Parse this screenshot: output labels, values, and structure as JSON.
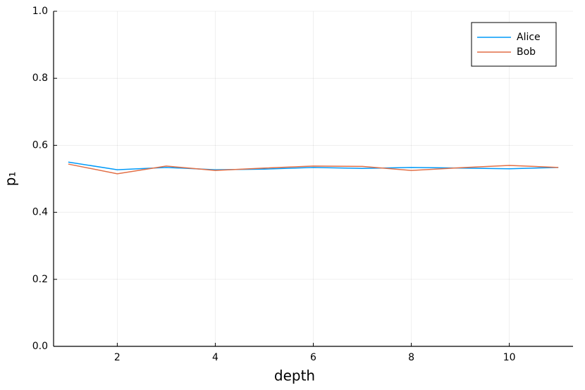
{
  "chart_data": {
    "type": "line",
    "xlabel": "depth",
    "ylabel": "p₁",
    "x": [
      1,
      2,
      3,
      4,
      5,
      6,
      7,
      8,
      9,
      10,
      11
    ],
    "series": [
      {
        "name": "Alice",
        "color": "#009af9",
        "values": [
          0.55,
          0.527,
          0.534,
          0.527,
          0.529,
          0.534,
          0.531,
          0.534,
          0.532,
          0.53,
          0.534
        ]
      },
      {
        "name": "Bob",
        "color": "#e26f46",
        "values": [
          0.544,
          0.515,
          0.538,
          0.525,
          0.532,
          0.538,
          0.537,
          0.525,
          0.533,
          0.54,
          0.534
        ]
      }
    ],
    "xlim": [
      0.7,
      11.3
    ],
    "xticks": [
      2,
      4,
      6,
      8,
      10
    ],
    "ylim": [
      0,
      1
    ],
    "yticks": [
      {
        "value": 0,
        "label": "0.0"
      },
      0.2,
      0.4,
      0.6,
      0.8,
      {
        "value": 1,
        "label": "1.0"
      }
    ],
    "grid": true,
    "legend": "top-right"
  }
}
